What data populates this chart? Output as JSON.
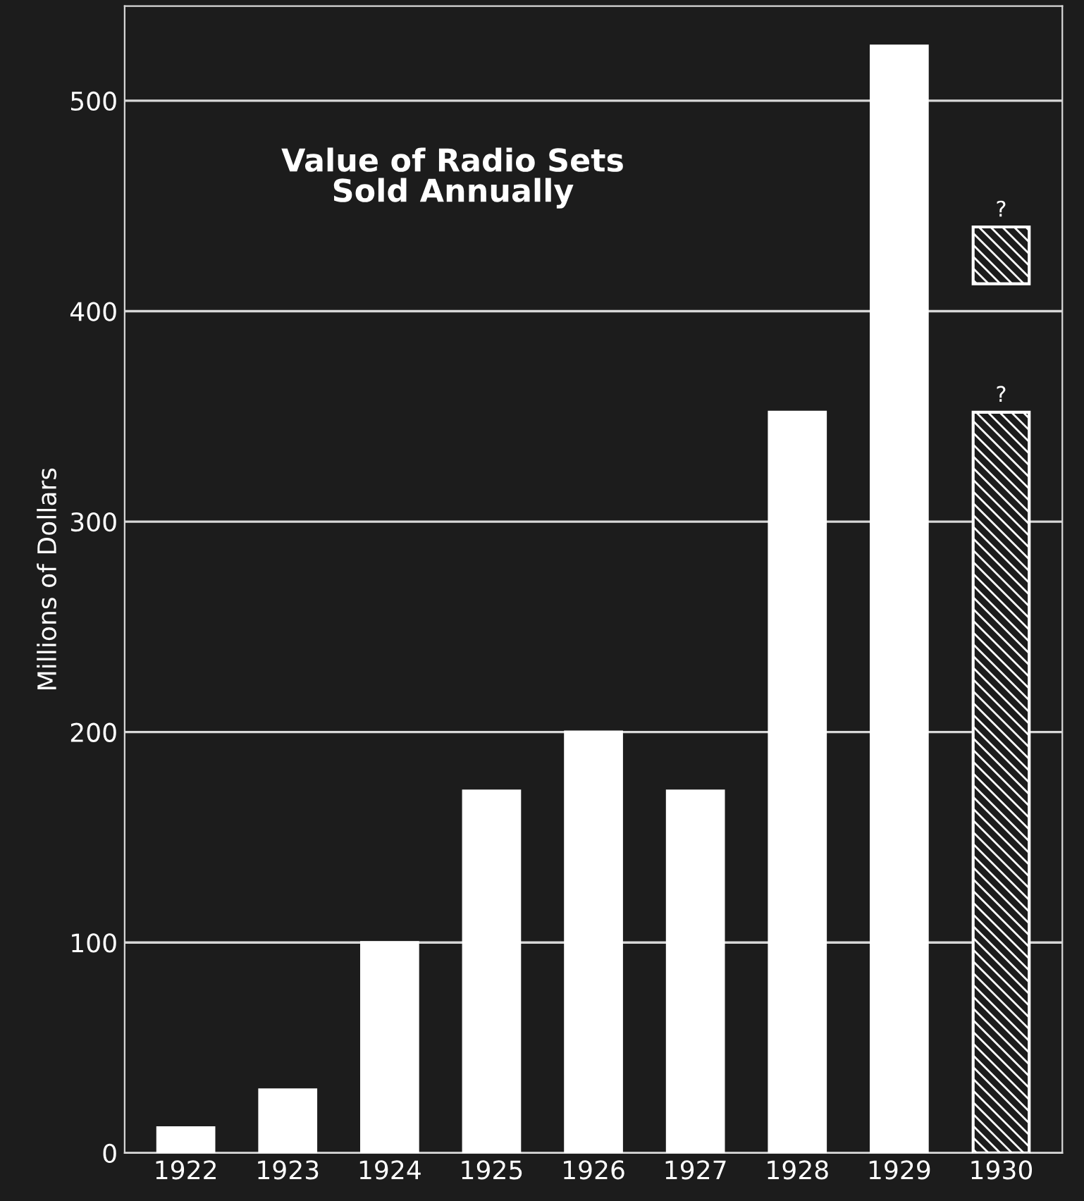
{
  "chart_data": {
    "type": "bar",
    "title": "Value of Radio Sets\nSold Annually",
    "ylabel": "Millions of Dollars",
    "categories": [
      "1922",
      "1923",
      "1924",
      "1925",
      "1926",
      "1927",
      "1928",
      "1929",
      "1930"
    ],
    "series": [
      {
        "color": "#ffffff",
        "values": [
          12,
          30,
          100,
          172,
          200,
          172,
          352,
          526,
          null
        ]
      },
      {
        "color": "#ffffff",
        "values": [
          null,
          null,
          null,
          null,
          null,
          null,
          null,
          null,
          352
        ]
      },
      {
        "color": "#ffffff",
        "values": [
          null,
          null,
          null,
          null,
          null,
          null,
          null,
          null,
          27
        ],
        "base": [
          null,
          null,
          null,
          null,
          null,
          null,
          null,
          null,
          413
        ]
      }
    ],
    "annotations": [
      {
        "text": "?",
        "x": "1930",
        "y": 352
      },
      {
        "text": "?",
        "x": "1930",
        "y": 440
      }
    ],
    "ylim": [
      0,
      545
    ],
    "yticks": [
      0,
      100,
      200,
      300,
      400,
      500
    ],
    "grid": "y"
  }
}
